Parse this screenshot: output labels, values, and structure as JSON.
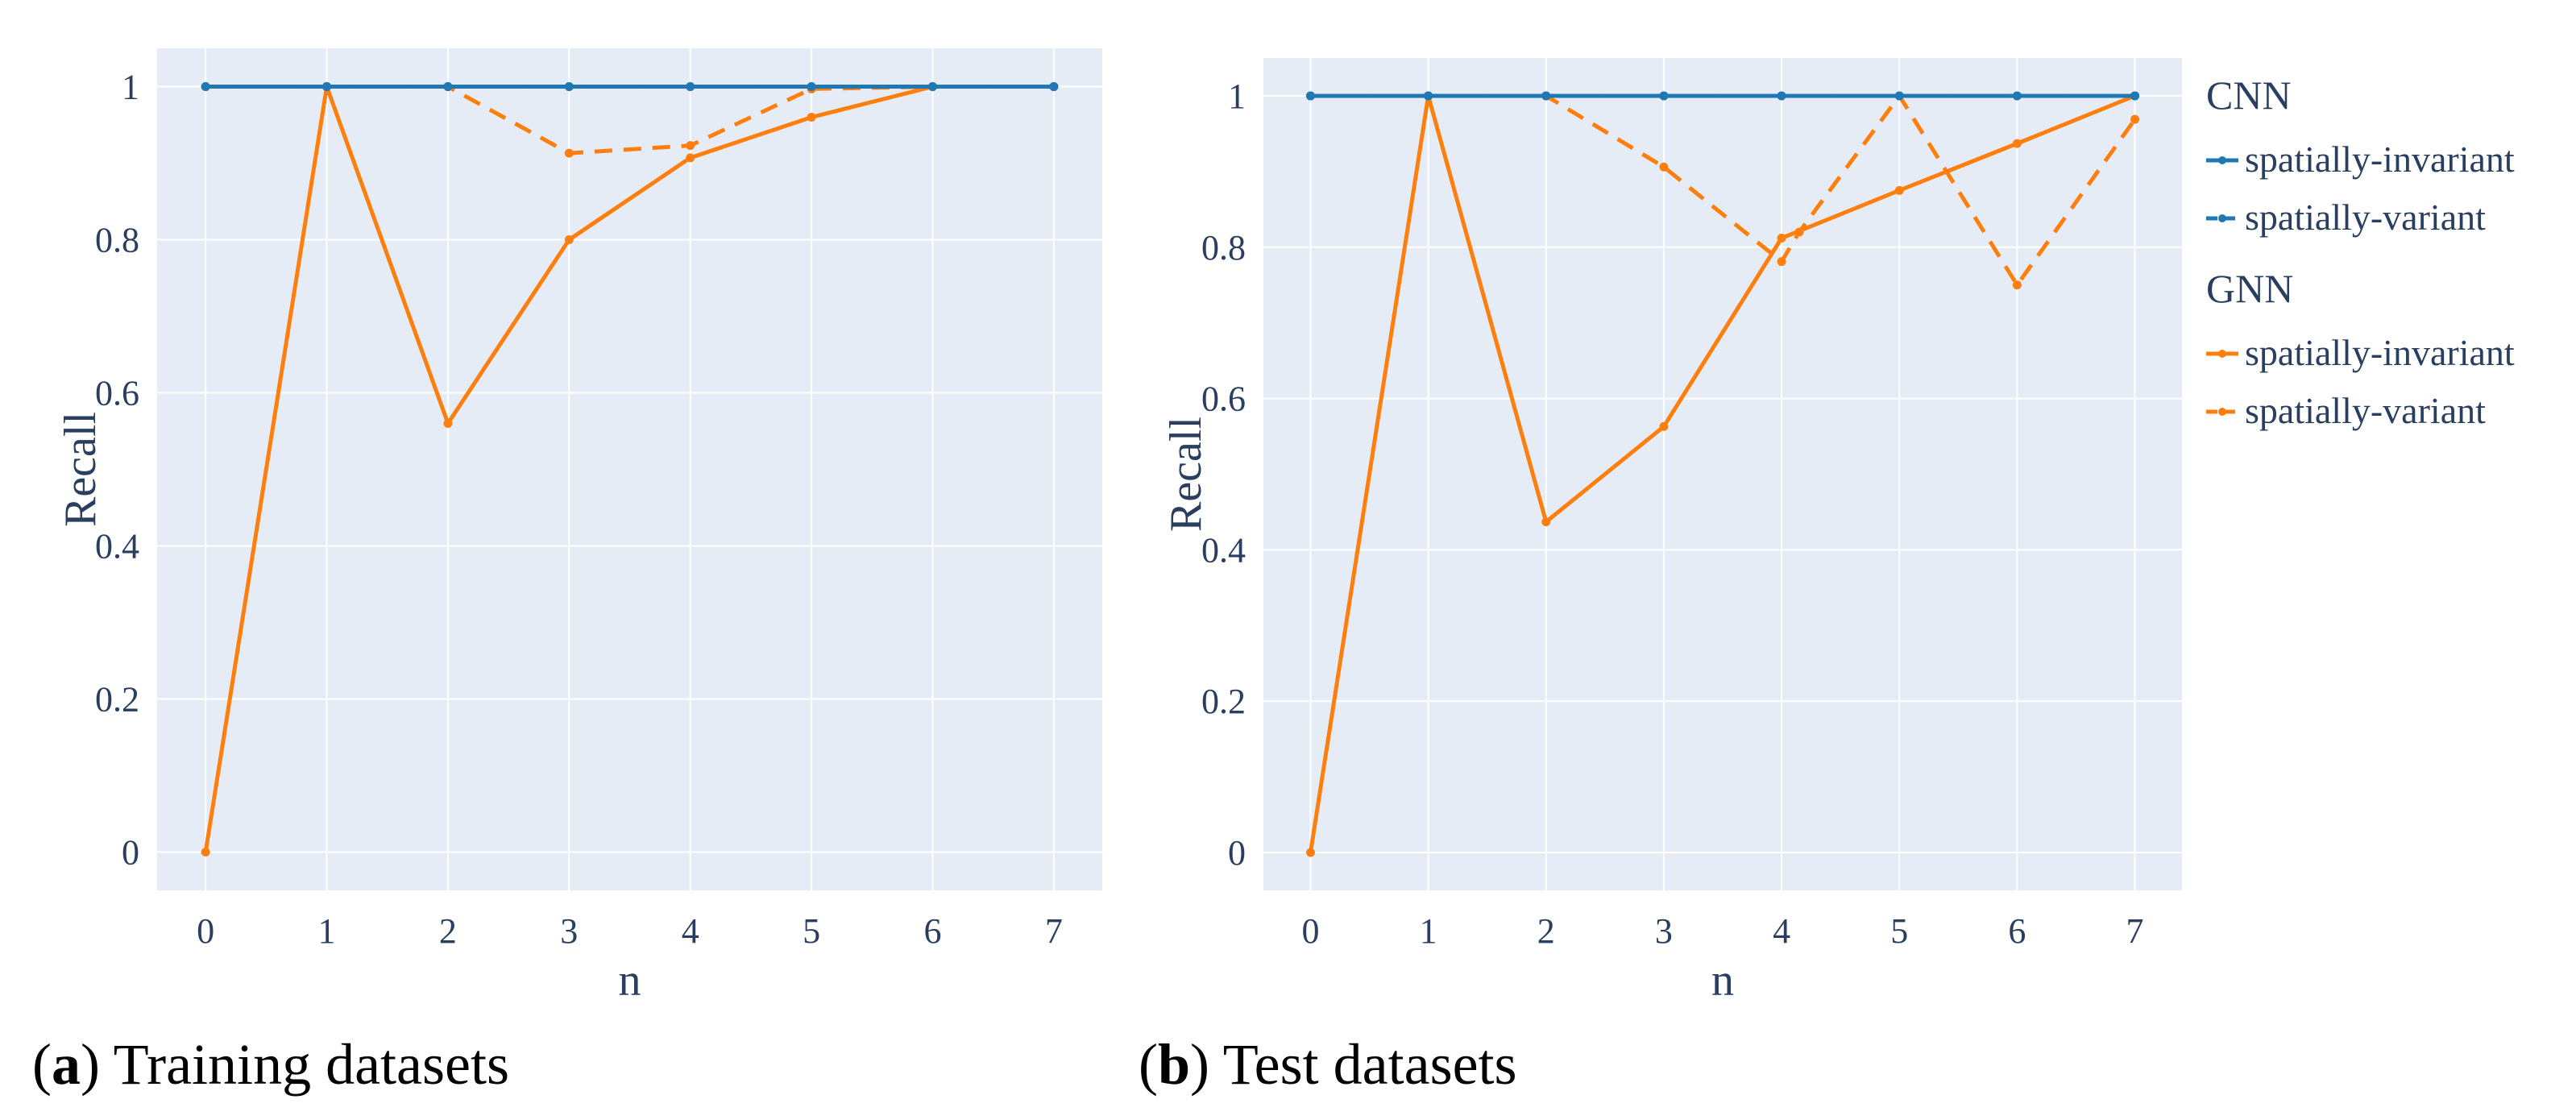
{
  "chart_data": [
    {
      "type": "line",
      "caption_letter": "a",
      "caption_text": "Training datasets",
      "xlabel": "n",
      "ylabel": "Recall",
      "x": [
        0,
        1,
        2,
        3,
        4,
        5,
        6,
        7
      ],
      "xticks": [
        "0",
        "1",
        "2",
        "3",
        "4",
        "5",
        "6",
        "7"
      ],
      "yticks": [
        "0",
        "0.2",
        "0.4",
        "0.6",
        "0.8",
        "1"
      ],
      "xlim": [
        -0.4,
        7.4
      ],
      "ylim": [
        -0.05,
        1.05
      ],
      "series": [
        {
          "name": "CNN spatially-invariant",
          "group": "CNN",
          "color": "#1f77b4",
          "dash": "solid",
          "values": [
            1,
            1,
            1,
            1,
            1,
            1,
            1,
            1
          ]
        },
        {
          "name": "CNN spatially-variant",
          "group": "CNN",
          "color": "#1f77b4",
          "dash": "dash",
          "values": [
            1,
            1,
            1,
            1,
            1,
            1,
            1,
            1
          ]
        },
        {
          "name": "GNN spatially-invariant",
          "group": "GNN",
          "color": "#ff7f0e",
          "dash": "solid",
          "values": [
            0,
            1,
            0.56,
            0.8,
            0.907,
            0.96,
            1,
            1
          ]
        },
        {
          "name": "GNN spatially-variant",
          "group": "GNN",
          "color": "#ff7f0e",
          "dash": "dash",
          "values": [
            1,
            1,
            1,
            0.913,
            0.923,
            0.997,
            1,
            1
          ]
        }
      ]
    },
    {
      "type": "line",
      "caption_letter": "b",
      "caption_text": "Test datasets",
      "xlabel": "n",
      "ylabel": "Recall",
      "xticks": [
        "0",
        "1",
        "2",
        "3",
        "4",
        "5",
        "6",
        "7"
      ],
      "yticks": [
        "0",
        "0.2",
        "0.4",
        "0.6",
        "0.8",
        "1"
      ],
      "xlim": [
        -0.4,
        7.4
      ],
      "ylim": [
        -0.05,
        1.05
      ],
      "series": [
        {
          "name": "CNN spatially-invariant",
          "group": "CNN",
          "color": "#1f77b4",
          "dash": "solid",
          "x": [
            0,
            1,
            2,
            3,
            4,
            5,
            6,
            7
          ],
          "values": [
            1,
            1,
            1,
            1,
            1,
            1,
            1,
            1
          ]
        },
        {
          "name": "CNN spatially-variant",
          "group": "CNN",
          "color": "#1f77b4",
          "dash": "dash",
          "x": [
            0,
            1,
            2,
            3,
            4,
            5,
            6,
            7
          ],
          "values": [
            1,
            1,
            1,
            1,
            1,
            1,
            1,
            1
          ]
        },
        {
          "name": "GNN spatially-invariant",
          "group": "GNN",
          "color": "#ff7f0e",
          "dash": "solid",
          "x": [
            0,
            1,
            2,
            3,
            4,
            5,
            6,
            7
          ],
          "values": [
            0,
            1,
            0.437,
            0.563,
            0.812,
            0.875,
            0.937,
            1
          ]
        },
        {
          "name": "GNN spatially-variant",
          "group": "GNN",
          "color": "#ff7f0e",
          "dash": "dash",
          "x": [
            0,
            1,
            2,
            3,
            4,
            4.15,
            5,
            6,
            7
          ],
          "values": [
            1,
            1,
            1,
            0.906,
            0.781,
            0.82,
            1,
            0.75,
            0.969
          ]
        }
      ]
    }
  ],
  "legend": {
    "groups": [
      {
        "title": "CNN",
        "entries": [
          {
            "label": "spatially-invariant",
            "color": "#1f77b4",
            "dash": "solid"
          },
          {
            "label": "spatially-variant",
            "color": "#1f77b4",
            "dash": "dash"
          }
        ]
      },
      {
        "title": "GNN",
        "entries": [
          {
            "label": "spatially-invariant",
            "color": "#ff7f0e",
            "dash": "solid"
          },
          {
            "label": "spatially-variant",
            "color": "#ff7f0e",
            "dash": "dash"
          }
        ]
      }
    ]
  },
  "colors": {
    "plot_bg": "#e5ecf6",
    "grid": "#ffffff",
    "text": "#2a3f5f"
  }
}
